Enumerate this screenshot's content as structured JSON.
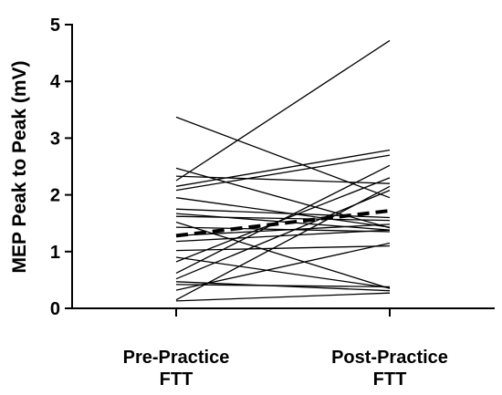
{
  "chart_data": {
    "type": "line",
    "title": "",
    "ylabel": "MEP Peak to Peak (mV)",
    "xlabel": "",
    "categories": [
      [
        "Pre-Practice",
        "FTT"
      ],
      [
        "Post-Practice",
        "FTT"
      ]
    ],
    "ylim": [
      0,
      5
    ],
    "yticks": [
      0,
      1,
      2,
      3,
      4,
      5
    ],
    "grid": false,
    "legend": "none",
    "subject_lines": [
      [
        3.37,
        1.95
      ],
      [
        2.47,
        1.42
      ],
      [
        2.33,
        2.2
      ],
      [
        2.25,
        4.72
      ],
      [
        2.15,
        2.79
      ],
      [
        2.08,
        2.7
      ],
      [
        1.95,
        1.43
      ],
      [
        1.75,
        1.6
      ],
      [
        1.67,
        1.38
      ],
      [
        1.62,
        1.55
      ],
      [
        1.52,
        0.35
      ],
      [
        1.43,
        1.35
      ],
      [
        1.28,
        1.48
      ],
      [
        1.18,
        1.38
      ],
      [
        1.02,
        1.1
      ],
      [
        0.9,
        0.36
      ],
      [
        0.82,
        2.3
      ],
      [
        0.62,
        2.52
      ],
      [
        0.52,
        2.08
      ],
      [
        0.47,
        0.31
      ],
      [
        0.42,
        0.38
      ],
      [
        0.32,
        1.15
      ],
      [
        0.15,
        2.15
      ],
      [
        0.13,
        0.27
      ]
    ],
    "mean_line": [
      1.28,
      1.72
    ],
    "colors": {
      "subject_line": "#000000",
      "mean_line": "#000000",
      "axis": "#000000"
    }
  }
}
